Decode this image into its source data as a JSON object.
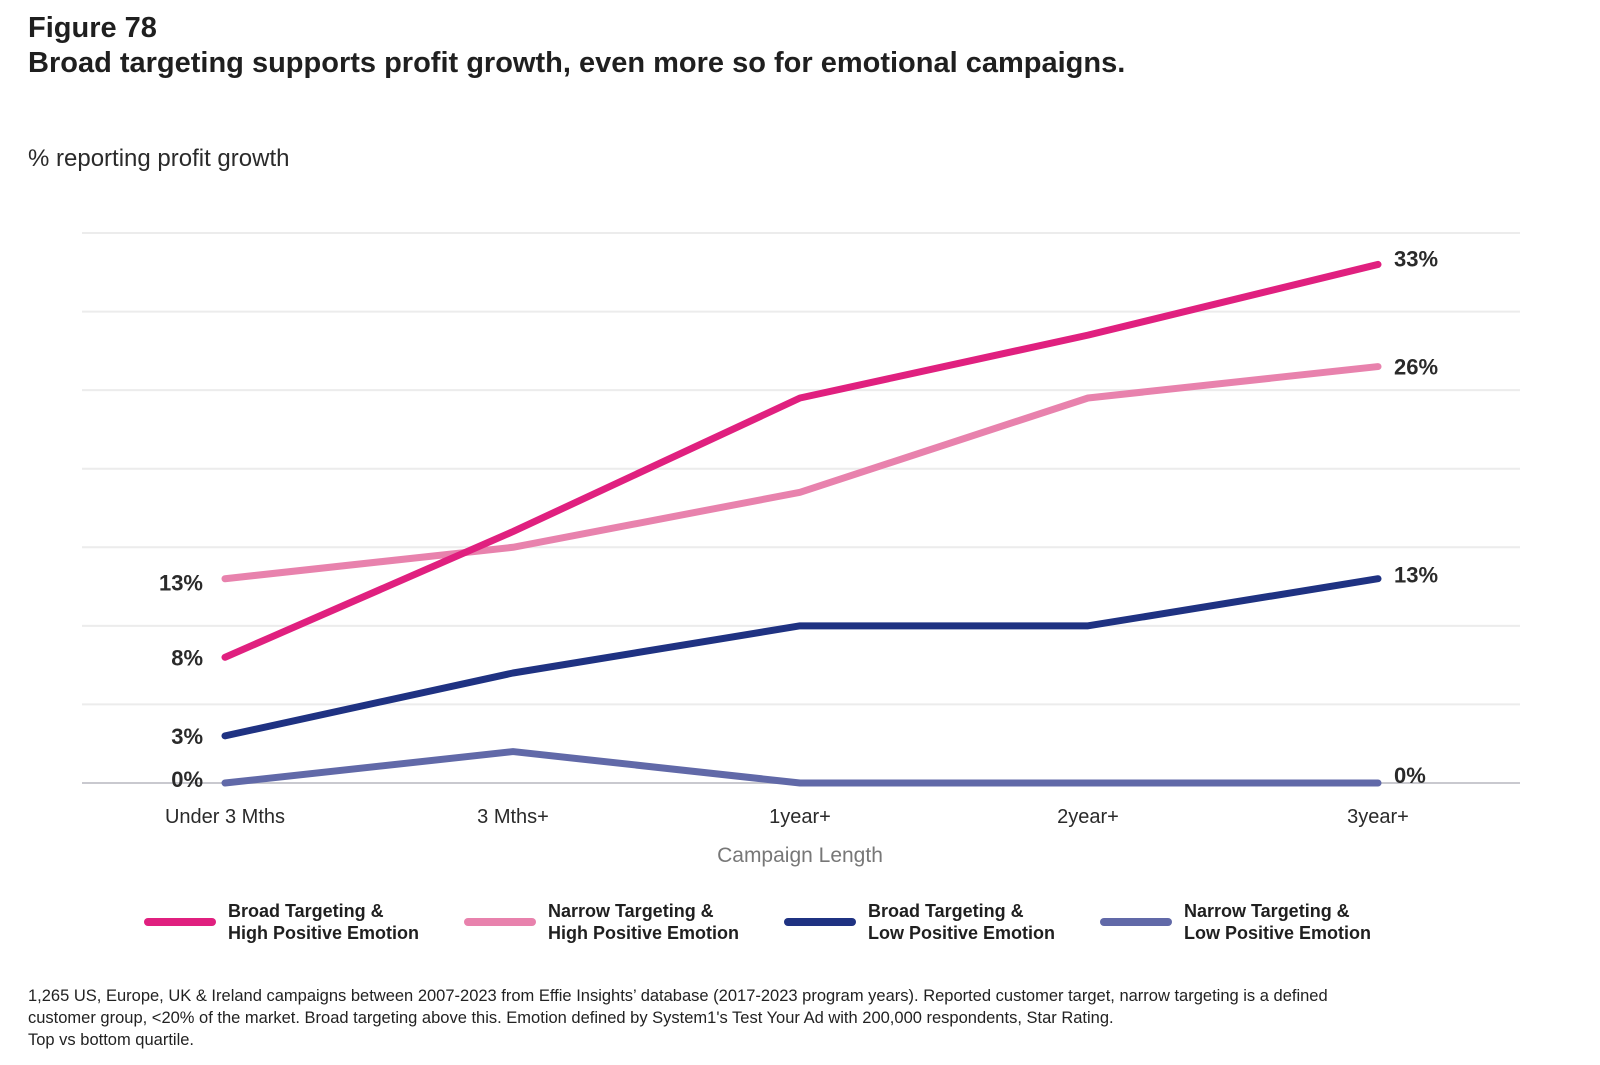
{
  "figure_label": "Figure 78",
  "figure_title": "Broad targeting supports profit growth, even more so for emotional campaigns.",
  "chart_data": {
    "type": "line",
    "title": "Broad targeting supports profit growth, even more so for emotional campaigns.",
    "ylabel": "% reporting profit growth",
    "xlabel": "Campaign Length",
    "categories": [
      "Under 3 Mths",
      "3 Mths+",
      "1year+",
      "2year+",
      "3year+"
    ],
    "ylim": [
      0,
      35
    ],
    "grid": true,
    "legend_position": "bottom",
    "series": [
      {
        "name": "Broad Targeting & High Positive Emotion",
        "name_line1": "Broad Targeting &",
        "name_line2": "High Positive Emotion",
        "color": "#e0207f",
        "values": [
          8,
          16,
          24.5,
          28.5,
          33
        ],
        "start_label": "8%",
        "end_label": "33%"
      },
      {
        "name": "Narrow Targeting & High Positive Emotion",
        "name_line1": "Narrow Targeting &",
        "name_line2": "High Positive Emotion",
        "color": "#e882ad",
        "values": [
          13,
          15,
          18.5,
          24.5,
          26.5
        ],
        "start_label": "13%",
        "end_label": "26%"
      },
      {
        "name": "Broad Targeting & Low Positive Emotion",
        "name_line1": "Broad Targeting &",
        "name_line2": "Low Positive Emotion",
        "color": "#1f3282",
        "values": [
          3,
          7,
          10,
          10,
          13
        ],
        "start_label": "3%",
        "end_label": "13%"
      },
      {
        "name": "Narrow Targeting & Low Positive Emotion",
        "name_line1": "Narrow Targeting &",
        "name_line2": "Low Positive Emotion",
        "color": "#6169a8",
        "values": [
          0,
          2,
          0,
          0,
          0
        ],
        "start_label": "0%",
        "end_label": "0%"
      }
    ]
  },
  "footnote": {
    "line1": "1,265 US, Europe, UK & Ireland campaigns between 2007-2023 from Effie Insights’ database  (2017-2023 program years). Reported customer target, narrow targeting is a defined",
    "line2": "customer group, <20% of the market. Broad targeting above this. Emotion defined by System1's Test Your Ad with 200,000 respondents, Star Rating.",
    "line3": "Top vs bottom quartile."
  }
}
